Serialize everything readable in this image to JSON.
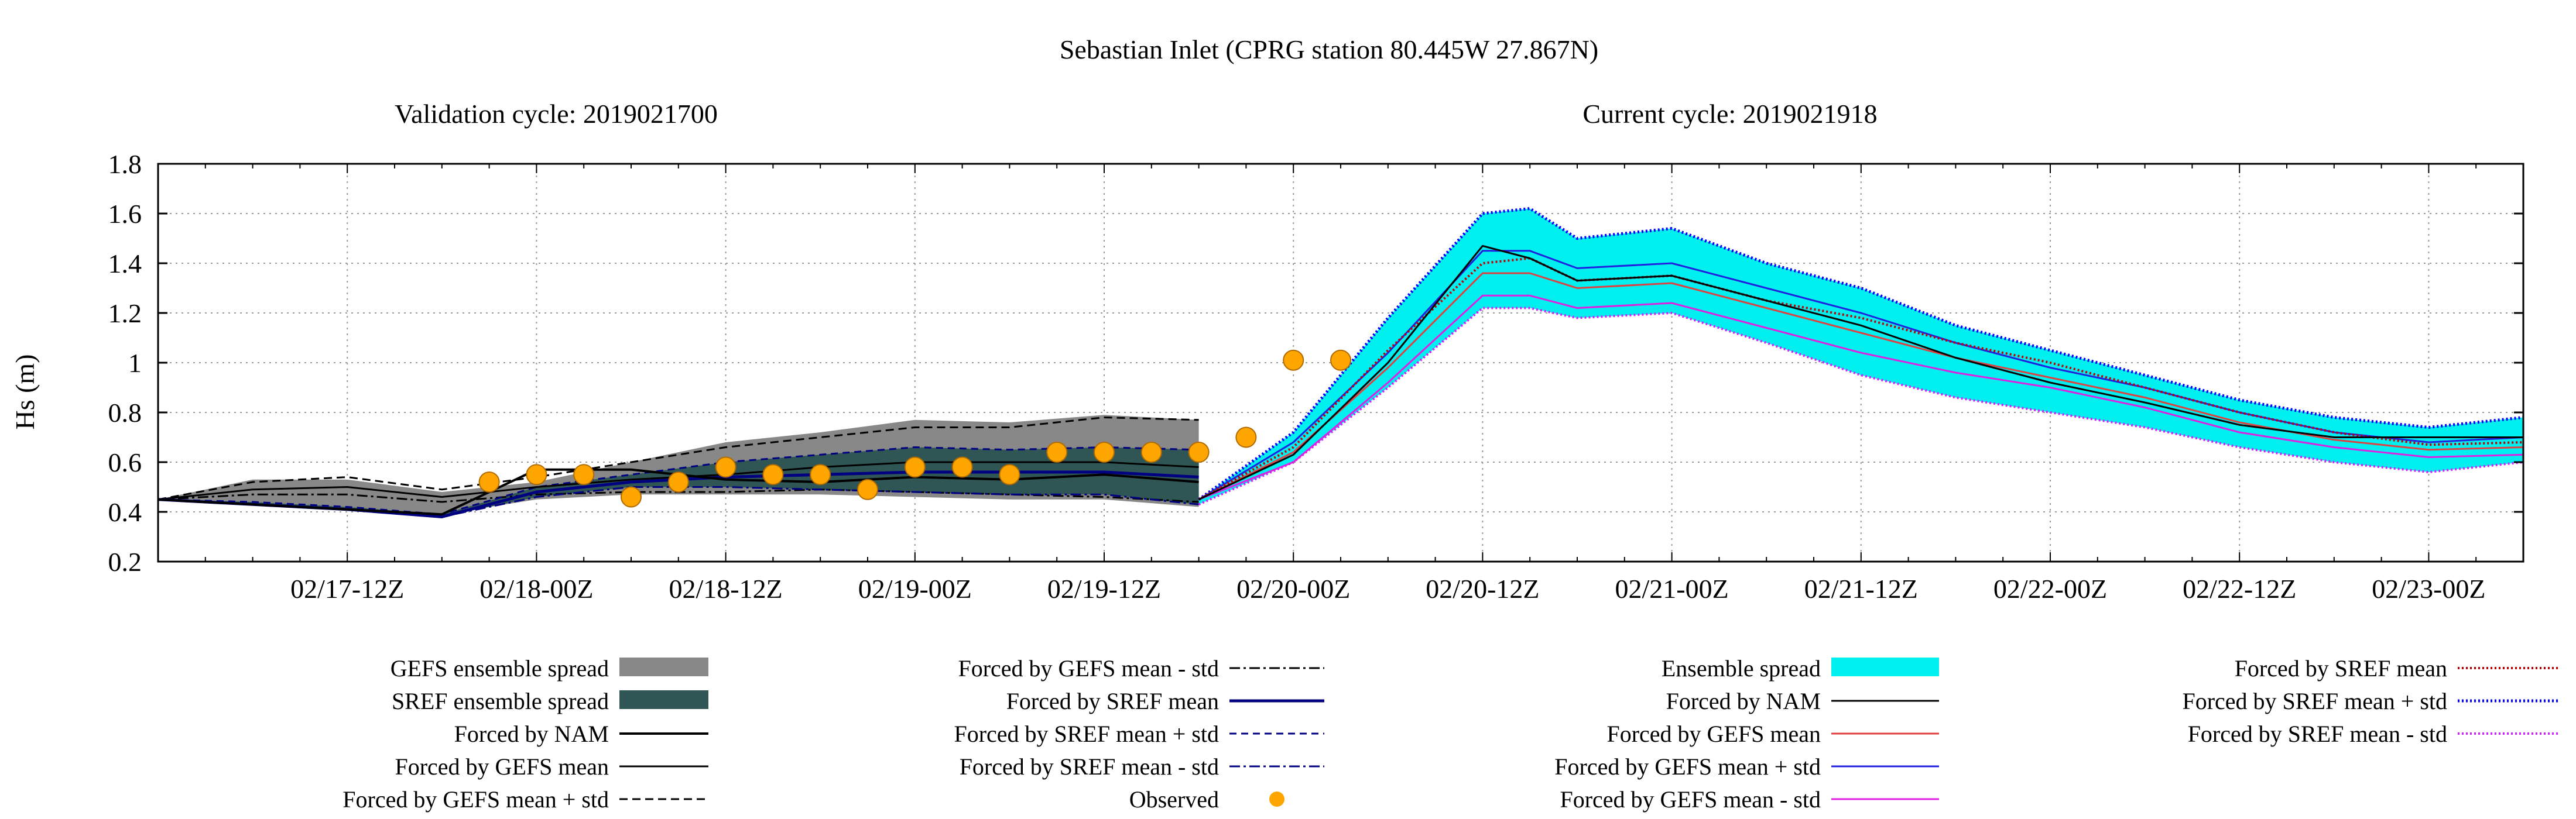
{
  "chart_data": {
    "type": "line",
    "title": "Sebastian Inlet (CPRG station 80.445W 27.867N)",
    "subtitles": {
      "left": "Validation cycle: 2019021700",
      "right": "Current cycle: 2019021918"
    },
    "ylabel": "Hs (m)",
    "xlabel": "",
    "ylim": [
      0.2,
      1.8
    ],
    "yticks": [
      "0.2",
      "0.4",
      "0.6",
      "0.8",
      "1",
      "1.2",
      "1.4",
      "1.6",
      "1.8"
    ],
    "x_range_hours_from_0217_00Z": [
      0,
      150
    ],
    "xticks": [
      {
        "label": "02/17-12Z",
        "h": 12
      },
      {
        "label": "02/18-00Z",
        "h": 24
      },
      {
        "label": "02/18-12Z",
        "h": 36
      },
      {
        "label": "02/19-00Z",
        "h": 48
      },
      {
        "label": "02/19-12Z",
        "h": 60
      },
      {
        "label": "02/20-00Z",
        "h": 72
      },
      {
        "label": "02/20-12Z",
        "h": 84
      },
      {
        "label": "02/21-00Z",
        "h": 96
      },
      {
        "label": "02/21-12Z",
        "h": 108
      },
      {
        "label": "02/22-00Z",
        "h": 120
      },
      {
        "label": "02/22-12Z",
        "h": 132
      },
      {
        "label": "02/23-00Z",
        "h": 144
      }
    ],
    "grid": true,
    "validation_cycle": {
      "x": [
        0,
        6,
        12,
        18,
        24,
        30,
        36,
        42,
        48,
        54,
        60,
        66
      ],
      "gefs_spread": {
        "upper": [
          0.45,
          0.53,
          0.53,
          0.48,
          0.52,
          0.6,
          0.68,
          0.72,
          0.77,
          0.76,
          0.79,
          0.77
        ],
        "lower": [
          0.45,
          0.44,
          0.42,
          0.39,
          0.45,
          0.47,
          0.47,
          0.47,
          0.46,
          0.45,
          0.45,
          0.42
        ]
      },
      "sref_spread": {
        "upper": [
          0.45,
          0.44,
          0.42,
          0.39,
          0.5,
          0.55,
          0.6,
          0.63,
          0.66,
          0.65,
          0.66,
          0.65
        ],
        "lower": [
          0.45,
          0.43,
          0.41,
          0.38,
          0.46,
          0.5,
          0.5,
          0.49,
          0.48,
          0.47,
          0.47,
          0.43
        ]
      },
      "nam": [
        0.45,
        0.43,
        0.41,
        0.39,
        0.57,
        0.57,
        0.53,
        0.52,
        0.54,
        0.53,
        0.55,
        0.52
      ],
      "gefs_mean": [
        0.45,
        0.49,
        0.5,
        0.46,
        0.5,
        0.53,
        0.55,
        0.58,
        0.6,
        0.6,
        0.6,
        0.58
      ],
      "gefs_mean_plus_std": [
        0.45,
        0.52,
        0.54,
        0.49,
        0.54,
        0.6,
        0.66,
        0.7,
        0.74,
        0.74,
        0.78,
        0.77
      ],
      "gefs_mean_minus_std": [
        0.45,
        0.47,
        0.47,
        0.44,
        0.47,
        0.48,
        0.48,
        0.49,
        0.48,
        0.47,
        0.46,
        0.44
      ],
      "sref_mean": [
        0.45,
        0.43,
        0.41,
        0.38,
        0.48,
        0.52,
        0.54,
        0.55,
        0.56,
        0.56,
        0.56,
        0.54
      ],
      "sref_mean_plus_std": [
        0.45,
        0.44,
        0.42,
        0.39,
        0.5,
        0.55,
        0.6,
        0.63,
        0.66,
        0.65,
        0.66,
        0.65
      ],
      "sref_mean_minus_std": [
        0.45,
        0.43,
        0.41,
        0.38,
        0.46,
        0.5,
        0.5,
        0.49,
        0.48,
        0.47,
        0.47,
        0.43
      ]
    },
    "current_cycle": {
      "x": [
        66,
        72,
        78,
        84,
        87,
        90,
        96,
        102,
        108,
        114,
        120,
        126,
        132,
        138,
        144,
        150
      ],
      "ensemble_spread": {
        "upper": [
          0.45,
          0.72,
          1.18,
          1.6,
          1.62,
          1.5,
          1.54,
          1.4,
          1.3,
          1.15,
          1.05,
          0.95,
          0.85,
          0.78,
          0.74,
          0.78
        ],
        "lower": [
          0.43,
          0.6,
          0.9,
          1.22,
          1.22,
          1.18,
          1.2,
          1.08,
          0.95,
          0.86,
          0.8,
          0.74,
          0.66,
          0.6,
          0.56,
          0.6
        ]
      },
      "nam": [
        0.45,
        0.63,
        1.0,
        1.47,
        1.42,
        1.33,
        1.35,
        1.25,
        1.15,
        1.02,
        0.92,
        0.84,
        0.75,
        0.7,
        0.7,
        0.7
      ],
      "gefs_mean": [
        0.45,
        0.64,
        0.98,
        1.36,
        1.36,
        1.3,
        1.32,
        1.22,
        1.12,
        1.02,
        0.94,
        0.86,
        0.76,
        0.69,
        0.65,
        0.66
      ],
      "gefs_mean_plus_std": [
        0.45,
        0.68,
        1.04,
        1.45,
        1.45,
        1.38,
        1.4,
        1.3,
        1.2,
        1.08,
        0.98,
        0.9,
        0.8,
        0.72,
        0.68,
        0.7
      ],
      "gefs_mean_minus_std": [
        0.45,
        0.6,
        0.92,
        1.27,
        1.27,
        1.22,
        1.24,
        1.14,
        1.04,
        0.96,
        0.9,
        0.82,
        0.72,
        0.66,
        0.62,
        0.63
      ],
      "sref_mean": [
        0.45,
        0.66,
        1.05,
        1.4,
        1.42,
        1.33,
        1.35,
        1.25,
        1.18,
        1.08,
        1.0,
        0.9,
        0.8,
        0.72,
        0.67,
        0.68
      ],
      "sref_mean_plus_std": [
        0.45,
        0.72,
        1.18,
        1.6,
        1.62,
        1.5,
        1.54,
        1.4,
        1.3,
        1.15,
        1.05,
        0.95,
        0.85,
        0.78,
        0.74,
        0.78
      ],
      "sref_mean_minus_std": [
        0.43,
        0.6,
        0.9,
        1.22,
        1.22,
        1.18,
        1.2,
        1.08,
        0.95,
        0.86,
        0.8,
        0.74,
        0.66,
        0.6,
        0.56,
        0.6
      ]
    },
    "observed": {
      "x": [
        21,
        24,
        27,
        30,
        33,
        36,
        39,
        42,
        45,
        48,
        51,
        54,
        57,
        60,
        63,
        66,
        69,
        72,
        75
      ],
      "y": [
        0.52,
        0.55,
        0.55,
        0.46,
        0.52,
        0.58,
        0.55,
        0.55,
        0.49,
        0.58,
        0.58,
        0.55,
        0.64,
        0.64,
        0.64,
        0.64,
        0.7,
        1.01,
        1.01
      ]
    },
    "colors": {
      "gefs_spread": "#888888",
      "sref_spread": "#2f5654",
      "ensemble_spread": "#00f0f0",
      "nam": "#000000",
      "gefs_mean_current": "#e04040",
      "gefs_mean_plus_std_current": "#2020e0",
      "gefs_mean_minus_std_current": "#e020e0",
      "sref_mean_current": "#c00000",
      "sref_mean_plus_std_current": "#0000ff",
      "sref_mean_minus_std_current": "#d020ff",
      "observed": "#ffa500",
      "sref_mean_validation": "#000080"
    },
    "legend": {
      "col1": [
        "GEFS ensemble spread",
        "SREF ensemble spread",
        "Forced by NAM",
        "Forced by GEFS mean",
        "Forced by GEFS mean + std"
      ],
      "col2": [
        "Forced by GEFS mean - std",
        "Forced by SREF mean",
        "Forced by SREF mean + std",
        "Forced by SREF mean - std",
        "Observed"
      ],
      "col3": [
        "Ensemble spread",
        "Forced by NAM",
        "Forced by GEFS mean",
        "Forced by GEFS mean + std",
        "Forced by GEFS mean - std"
      ],
      "col4": [
        "Forced by SREF mean",
        "Forced by SREF mean + std",
        "Forced by SREF mean - std"
      ]
    }
  }
}
